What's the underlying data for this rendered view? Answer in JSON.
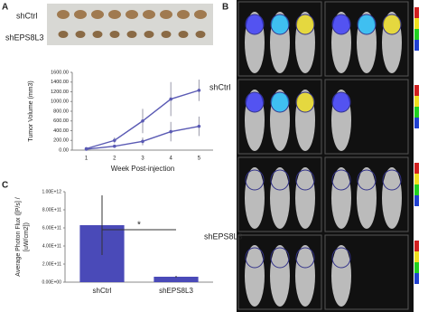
{
  "panels": {
    "a_label": "A",
    "b_label": "B",
    "c_label": "C",
    "photo_labels": [
      "shCtrl",
      "shEPS8L3"
    ],
    "imaging_labels": [
      "shCtrl",
      "shEPS8L3"
    ]
  },
  "chart_data": [
    {
      "type": "line",
      "y_label": "Tumor Volume (mm3)",
      "x_label": "Week Post-injection",
      "x": [
        1,
        2,
        3,
        4,
        5
      ],
      "xlim": [
        0.5,
        5.5
      ],
      "xticks": [
        1,
        2,
        3,
        4,
        5
      ],
      "ylim": [
        0,
        1600
      ],
      "yticks": [
        {
          "value": 0,
          "label": "0.00"
        },
        {
          "value": 200,
          "label": "200.00"
        },
        {
          "value": 400,
          "label": "400.00"
        },
        {
          "value": 600,
          "label": "600.00"
        },
        {
          "value": 800,
          "label": "800.00"
        },
        {
          "value": 1000,
          "label": "1000.00"
        },
        {
          "value": 1200,
          "label": "1200.00"
        },
        {
          "value": 1400,
          "label": "1400.00"
        },
        {
          "value": 1600,
          "label": "1600.00"
        }
      ],
      "series": [
        {
          "color": "#5a5ab4",
          "values": [
            30,
            200,
            600,
            1050,
            1230
          ],
          "errors": [
            15,
            60,
            250,
            350,
            220
          ]
        },
        {
          "color": "#5a5ab4",
          "values": [
            20,
            80,
            180,
            380,
            490
          ],
          "errors": [
            10,
            30,
            80,
            200,
            200
          ]
        }
      ]
    },
    {
      "type": "bar",
      "y_label": [
        "Average Photon Flux ([P/s] /",
        "[uW/cm2])"
      ],
      "categories": [
        "shCtrl",
        "shEPS8L3"
      ],
      "values": [
        630000000000,
        60000000000
      ],
      "errors": [
        330000000000,
        10000000000
      ],
      "color": "#4a4ab8",
      "ylim": [
        0,
        1000000000000
      ],
      "yticks": [
        {
          "value": 0,
          "label": "0.00E+00"
        },
        {
          "value": 200000000000,
          "label": "2.00E+11"
        },
        {
          "value": 400000000000,
          "label": "4.00E+11"
        },
        {
          "value": 600000000000,
          "label": "6.00E+11"
        },
        {
          "value": 800000000000,
          "label": "8.00E+11"
        },
        {
          "value": 1000000000000,
          "label": "1.00E+12"
        }
      ],
      "annotation": "*"
    }
  ]
}
